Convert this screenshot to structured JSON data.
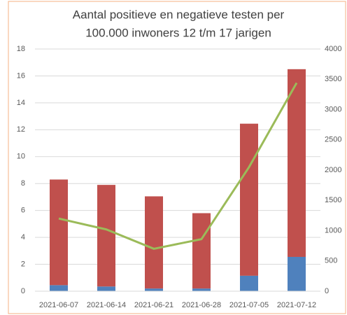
{
  "chart_data": {
    "type": "bar",
    "stacked": true,
    "title": [
      "Aantal positieve en negatieve testen per",
      "100.000 inwoners 12 t/m 17 jarigen"
    ],
    "categories": [
      "2021-06-07",
      "2021-06-14",
      "2021-06-21",
      "2021-06-28",
      "2021-07-05",
      "2021-07-12"
    ],
    "series": [
      {
        "color": "#4f81bd",
        "values": [
          0.45,
          0.35,
          0.2,
          0.2,
          1.15,
          2.55
        ]
      },
      {
        "color": "#c0504d",
        "values": [
          7.85,
          7.55,
          6.85,
          5.6,
          11.3,
          13.95
        ]
      },
      {
        "type": "line",
        "axis": "y2",
        "color": "#9bbb59",
        "values": [
          1200,
          1020,
          700,
          860,
          2050,
          3440
        ]
      }
    ],
    "ylim": [
      0,
      18
    ],
    "yticks": [
      0,
      2,
      4,
      6,
      8,
      10,
      12,
      14,
      16,
      18
    ],
    "y2lim": [
      0,
      4000
    ],
    "y2ticks": [
      0,
      500,
      1000,
      1500,
      2000,
      2500,
      3000,
      3500,
      4000
    ],
    "grid": true
  }
}
